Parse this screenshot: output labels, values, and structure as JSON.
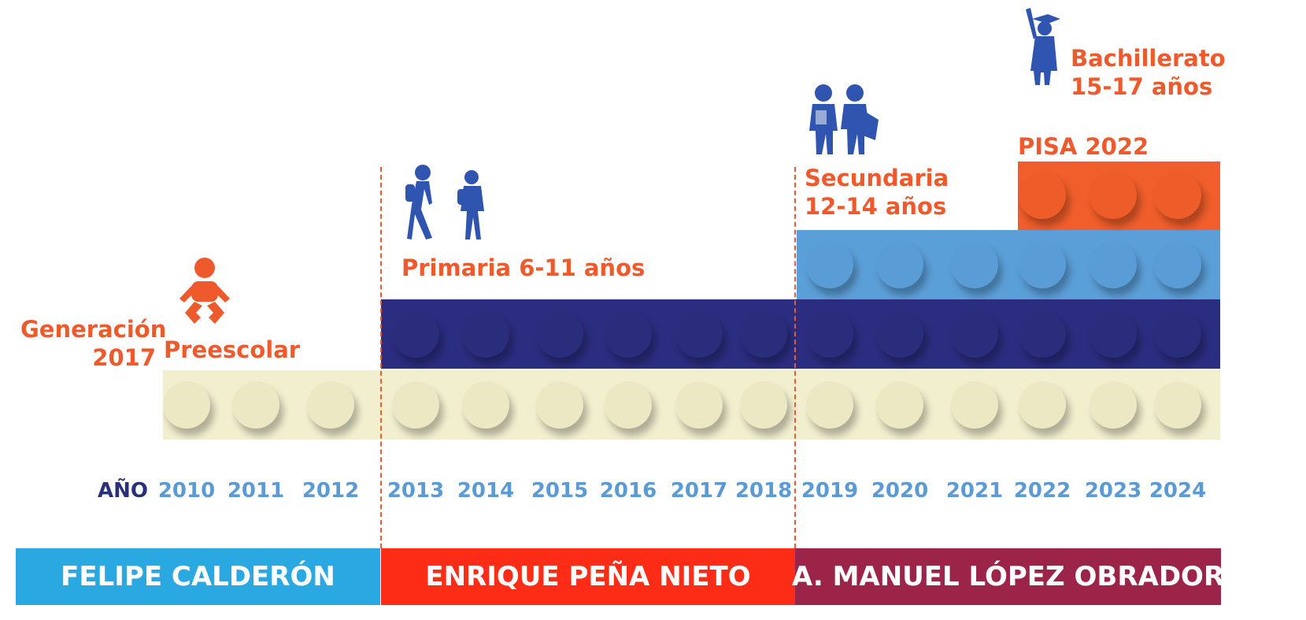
{
  "generation_label": [
    "Generación",
    "2017"
  ],
  "stages": {
    "preescolar": {
      "label": "Preescolar",
      "color": "#f2efcf",
      "start": 2010,
      "end": 2024
    },
    "primaria": {
      "label": "Primaria 6-11 años",
      "color": "#2b2d80",
      "start": 2013,
      "end": 2024
    },
    "secundaria": {
      "label_lines": [
        "Secundaria",
        "12-14 años"
      ],
      "color": "#5b9fd8",
      "start": 2019,
      "end": 2024
    },
    "bachillerato": {
      "label_lines": [
        "Bachillerato",
        "15-17 años"
      ],
      "color": "#ef5e2b",
      "start": 2022,
      "end": 2024
    },
    "pisa": {
      "label": "PISA 2022"
    }
  },
  "icons": {
    "baby": "baby-icon",
    "primary_kids": "walking-children-icon",
    "secondary_teens": "teen-students-icon",
    "graduate": "graduate-icon"
  },
  "axis": {
    "label": "AÑO",
    "years": [
      "2010",
      "2011",
      "2012",
      "2013",
      "2014",
      "2015",
      "2016",
      "2017",
      "2018",
      "2019",
      "2020",
      "2021",
      "2022",
      "2023",
      "2024"
    ]
  },
  "presidents": [
    {
      "name": "FELIPE CALDERÓN",
      "color": "#29a8e1",
      "start": 2010,
      "end": 2012
    },
    {
      "name": "ENRIQUE PEÑA NIETO",
      "color": "#fc2c16",
      "start": 2013,
      "end": 2018
    },
    {
      "name": "A. MANUEL LÓPEZ OBRADOR",
      "color": "#9c2448",
      "start": 2019,
      "end": 2024
    }
  ],
  "colors": {
    "accent_orange": "#ee5a2c",
    "axis_label": "#2a2f7a",
    "year_text": "#5b9bd5"
  }
}
